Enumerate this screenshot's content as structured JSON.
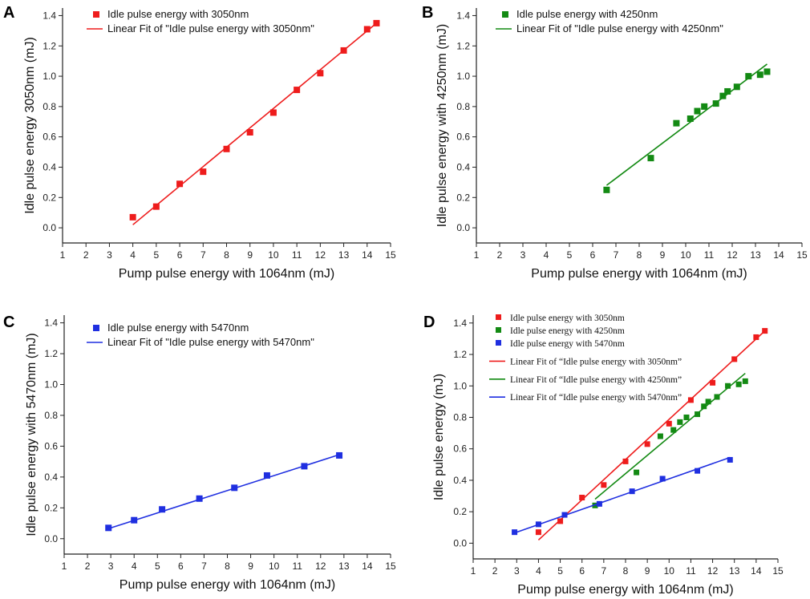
{
  "colors": {
    "red": "#ee1c1c",
    "green": "#138a13",
    "blue": "#1f2fe0",
    "axis": "#222222"
  },
  "chart_data": [
    {
      "panel": "A",
      "type": "scatter",
      "xlabel": "Pump pulse energy with 1064nm (mJ)",
      "ylabel": "Idle pulse energy 3050nm  (mJ)",
      "xlim": [
        1,
        15
      ],
      "ylim": [
        -0.1,
        1.45
      ],
      "xticks": [
        "1",
        "2",
        "3",
        "4",
        "5",
        "6",
        "7",
        "8",
        "9",
        "10",
        "11",
        "12",
        "13",
        "14",
        "15"
      ],
      "yticks": [
        "0.0",
        "0.2",
        "0.4",
        "0.6",
        "0.8",
        "1.0",
        "1.2",
        "1.4"
      ],
      "series": [
        {
          "name": "Idle pulse energy with 3050nm",
          "color": "#ee1c1c",
          "x": [
            4,
            5,
            6,
            7,
            8,
            9,
            10,
            11,
            12,
            13,
            14,
            14.4
          ],
          "y": [
            0.07,
            0.14,
            0.29,
            0.37,
            0.52,
            0.63,
            0.76,
            0.91,
            1.02,
            1.17,
            1.31,
            1.35
          ],
          "fit_name": "Linear Fit of \"Idle pulse energy with 3050nm\"",
          "fit": [
            [
              4,
              0.02
            ],
            [
              14.4,
              1.35
            ]
          ]
        }
      ]
    },
    {
      "panel": "B",
      "type": "scatter",
      "xlabel": "Pump pulse energy with 1064nm (mJ)",
      "ylabel": "Idle pulse energy with 4250nm (mJ)",
      "xlim": [
        1,
        15
      ],
      "ylim": [
        -0.1,
        1.45
      ],
      "xticks": [
        "1",
        "2",
        "3",
        "4",
        "5",
        "6",
        "7",
        "8",
        "9",
        "10",
        "11",
        "12",
        "13",
        "14",
        "15"
      ],
      "yticks": [
        "0.0",
        "0.2",
        "0.4",
        "0.6",
        "0.8",
        "1.0",
        "1.2",
        "1.4"
      ],
      "series": [
        {
          "name": "Idle pulse energy with 4250nm",
          "color": "#138a13",
          "x": [
            6.6,
            8.5,
            9.6,
            10.2,
            10.5,
            10.8,
            11.3,
            11.6,
            11.8,
            12.2,
            12.7,
            13.2,
            13.5
          ],
          "y": [
            0.25,
            0.46,
            0.69,
            0.72,
            0.77,
            0.8,
            0.82,
            0.87,
            0.9,
            0.93,
            1.0,
            1.01,
            1.03
          ],
          "fit_name": "Linear Fit of \"Idle pulse energy with 4250nm\"",
          "fit": [
            [
              6.6,
              0.28
            ],
            [
              13.5,
              1.08
            ]
          ]
        }
      ]
    },
    {
      "panel": "C",
      "type": "scatter",
      "xlabel": "Pump pulse energy with 1064nm (mJ)",
      "ylabel": "Idle pulse energy with 5470nm (mJ)",
      "xlim": [
        1,
        15
      ],
      "ylim": [
        -0.1,
        1.45
      ],
      "xticks": [
        "1",
        "2",
        "3",
        "4",
        "5",
        "6",
        "7",
        "8",
        "9",
        "10",
        "11",
        "12",
        "13",
        "14",
        "15"
      ],
      "yticks": [
        "0.0",
        "0.2",
        "0.4",
        "0.6",
        "0.8",
        "1.0",
        "1.2",
        "1.4"
      ],
      "series": [
        {
          "name": "Idle pulse energy with 5470nm",
          "color": "#1f2fe0",
          "x": [
            2.9,
            4.0,
            5.2,
            6.8,
            8.3,
            9.7,
            11.3,
            12.8
          ],
          "y": [
            0.07,
            0.12,
            0.19,
            0.26,
            0.33,
            0.41,
            0.47,
            0.54
          ],
          "fit_name": "Linear Fit of \"Idle pulse energy with 5470nm\"",
          "fit": [
            [
              2.9,
              0.065
            ],
            [
              12.8,
              0.545
            ]
          ]
        }
      ]
    },
    {
      "panel": "D",
      "type": "scatter",
      "xlabel": "Pump pulse energy with 1064nm (mJ)",
      "ylabel": "Idle  pulse energy  (mJ)",
      "xlim": [
        1,
        15
      ],
      "ylim": [
        -0.1,
        1.45
      ],
      "xticks": [
        "1",
        "2",
        "3",
        "4",
        "5",
        "6",
        "7",
        "8",
        "9",
        "10",
        "11",
        "12",
        "13",
        "14",
        "15"
      ],
      "yticks": [
        "0.0",
        "0.2",
        "0.4",
        "0.6",
        "0.8",
        "1.0",
        "1.2",
        "1.4"
      ],
      "series": [
        {
          "name": "Idle pulse energy with 3050nm",
          "color": "#ee1c1c",
          "x": [
            4,
            5,
            6,
            7,
            8,
            9,
            10,
            11,
            12,
            13,
            14,
            14.4
          ],
          "y": [
            0.07,
            0.14,
            0.29,
            0.37,
            0.52,
            0.63,
            0.76,
            0.91,
            1.02,
            1.17,
            1.31,
            1.35
          ],
          "fit_name": "Linear Fit of “Idle pulse energy with 3050nm”",
          "fit": [
            [
              4,
              0.02
            ],
            [
              14.4,
              1.35
            ]
          ]
        },
        {
          "name": "Idle pulse energy with 4250nm",
          "color": "#138a13",
          "x": [
            6.6,
            8.5,
            9.6,
            10.2,
            10.5,
            10.8,
            11.3,
            11.6,
            11.8,
            12.2,
            12.7,
            13.2,
            13.5
          ],
          "y": [
            0.24,
            0.45,
            0.68,
            0.72,
            0.77,
            0.8,
            0.82,
            0.87,
            0.9,
            0.93,
            1.0,
            1.01,
            1.03
          ],
          "fit_name": "Linear Fit of “Idle pulse energy with 4250nm”",
          "fit": [
            [
              6.6,
              0.28
            ],
            [
              13.5,
              1.08
            ]
          ]
        },
        {
          "name": "Idle pulse energy with 5470nm",
          "color": "#1f2fe0",
          "x": [
            2.9,
            4.0,
            5.2,
            6.8,
            8.3,
            9.7,
            11.3,
            12.8
          ],
          "y": [
            0.07,
            0.12,
            0.18,
            0.25,
            0.33,
            0.41,
            0.46,
            0.53
          ],
          "fit_name": "Linear Fit of “Idle pulse energy with 5470nm”",
          "fit": [
            [
              2.9,
              0.065
            ],
            [
              12.8,
              0.545
            ]
          ]
        }
      ]
    }
  ]
}
